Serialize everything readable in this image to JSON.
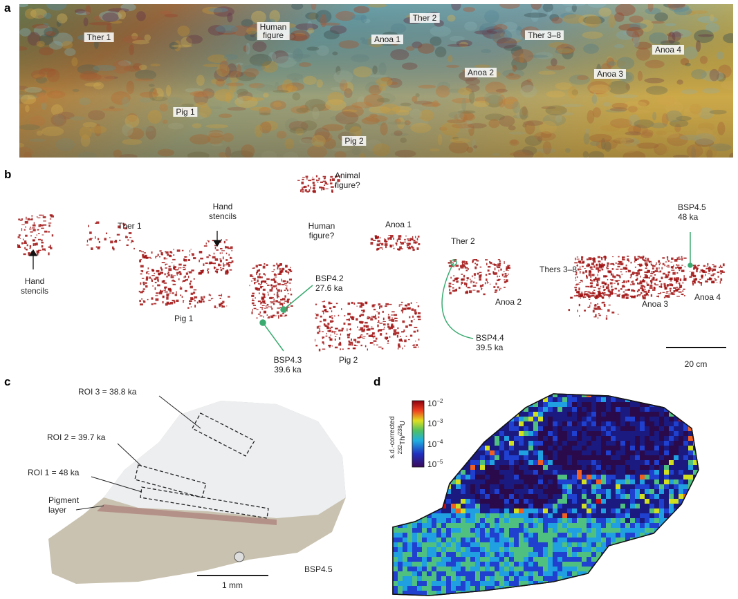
{
  "panel_a": {
    "letter": "a",
    "labels": [
      "Ther 1",
      "Human\nfigure",
      "Anoa 1",
      "Ther 2",
      "Ther 3–8",
      "Anoa 4",
      "Anoa 2",
      "Anoa 3",
      "Pig 1",
      "Pig 2"
    ]
  },
  "panel_b": {
    "letter": "b",
    "labels": [
      "Animal\nfigure?",
      "Hand\nstencils",
      "Ther 1",
      "Human\nfigure?",
      "Anoa 1",
      "Ther 2",
      "BSP4.5\n48 ka",
      "Hand\nstencils",
      "BSP4.2\n27.6 ka",
      "Thers 3–8",
      "Pig 1",
      "Anoa 2",
      "Anoa 3",
      "Anoa 4",
      "BSP4.4\n39.5 ka",
      "BSP4.3\n39.6 ka",
      "Pig 2"
    ],
    "scale_bar": "20 cm"
  },
  "panel_c": {
    "letter": "c",
    "labels": [
      "ROI 3 = 38.8 ka",
      "ROI 2 = 39.7 ka",
      "ROI 1 = 48 ka",
      "Pigment\nlayer",
      "BSP4.5"
    ],
    "scale_bar": "1 mm"
  },
  "panel_d": {
    "letter": "d",
    "colorbar_title": [
      "s.d.-corrected",
      "232",
      "Th/",
      "238",
      "U"
    ],
    "colorbar_ticks": [
      {
        "base": "10",
        "exp": "−2"
      },
      {
        "base": "10",
        "exp": "−3"
      },
      {
        "base": "10",
        "exp": "−4"
      },
      {
        "base": "10",
        "exp": "−5"
      }
    ]
  }
}
